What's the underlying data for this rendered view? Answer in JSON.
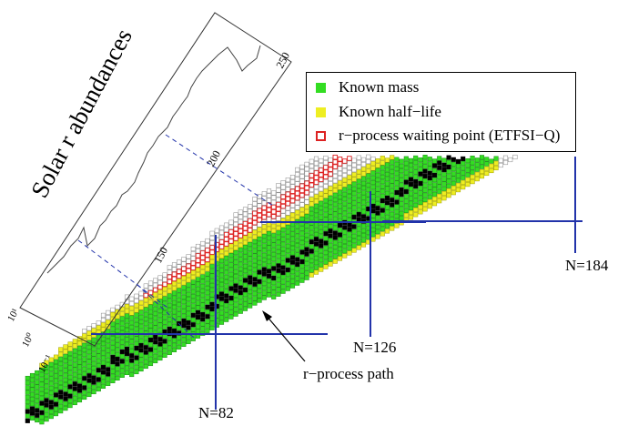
{
  "colors": {
    "known_mass": "#33dd22",
    "known_half_life": "#eeee22",
    "waiting_point": "#dd2222",
    "stable": "#000000",
    "magic_line": "#2233aa",
    "grid": "#888888"
  },
  "legend": {
    "known_mass": "Known mass",
    "known_half_life": "Known half−life",
    "waiting_point": "r−process waiting point (ETFSI−Q)"
  },
  "magic_numbers": {
    "n82": "N=82",
    "n126": "N=126",
    "n184": "N=184"
  },
  "path_label": "r−process path",
  "abundance_panel": {
    "title": "Solar r abundances",
    "mass_ticks": [
      "150",
      "200",
      "250"
    ],
    "abundance_ticks": [
      "10¹",
      "10⁰",
      "10⁻¹"
    ]
  }
}
